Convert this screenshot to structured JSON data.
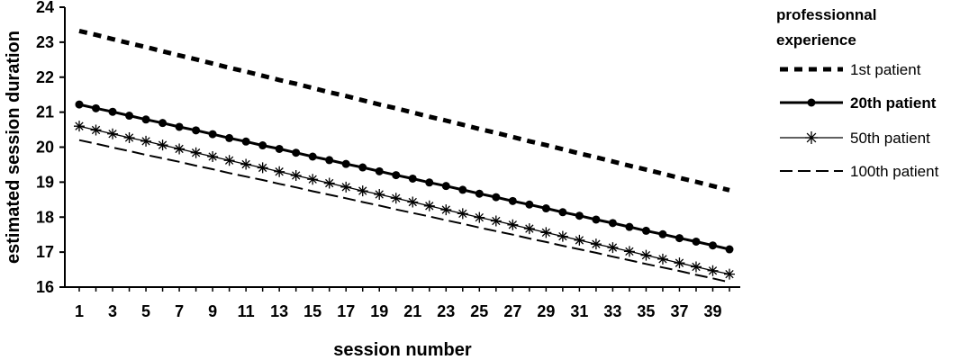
{
  "chart_data": {
    "type": "line",
    "xlabel": "session number",
    "ylabel": "estimated session duration",
    "ylim": [
      16,
      24
    ],
    "xlim": [
      1,
      40
    ],
    "y_ticks": [
      16,
      17,
      18,
      19,
      20,
      21,
      22,
      23,
      24
    ],
    "x_ticks": [
      1,
      3,
      5,
      7,
      9,
      11,
      13,
      15,
      17,
      19,
      21,
      23,
      25,
      27,
      29,
      31,
      33,
      35,
      37,
      39
    ],
    "grid": false,
    "legend": {
      "title_line1": "professionnal",
      "title_line2": "experience",
      "placement": "right"
    },
    "series": [
      {
        "name": "1st patient",
        "style": "dotted-thick",
        "color": "#000000",
        "x": [
          1,
          2,
          3,
          4,
          5,
          6,
          7,
          8,
          9,
          10,
          11,
          12,
          13,
          14,
          15,
          16,
          17,
          18,
          19,
          20,
          21,
          22,
          23,
          24,
          25,
          26,
          27,
          28,
          29,
          30,
          31,
          32,
          33,
          34,
          35,
          36,
          37,
          38,
          39,
          40
        ],
        "values": [
          23.32,
          23.21,
          23.09,
          22.97,
          22.86,
          22.74,
          22.62,
          22.51,
          22.39,
          22.27,
          22.16,
          22.04,
          21.92,
          21.81,
          21.69,
          21.57,
          21.46,
          21.34,
          21.22,
          21.11,
          20.99,
          20.87,
          20.76,
          20.64,
          20.52,
          20.41,
          20.29,
          20.17,
          20.06,
          19.94,
          19.82,
          19.71,
          19.59,
          19.47,
          19.36,
          19.24,
          19.12,
          19.01,
          18.89,
          18.77
        ]
      },
      {
        "name": "20th patient",
        "style": "solid-circle",
        "color": "#000000",
        "x": [
          1,
          2,
          3,
          4,
          5,
          6,
          7,
          8,
          9,
          10,
          11,
          12,
          13,
          14,
          15,
          16,
          17,
          18,
          19,
          20,
          21,
          22,
          23,
          24,
          25,
          26,
          27,
          28,
          29,
          30,
          31,
          32,
          33,
          34,
          35,
          36,
          37,
          38,
          39,
          40
        ],
        "values": [
          21.22,
          21.11,
          21.01,
          20.9,
          20.79,
          20.69,
          20.58,
          20.48,
          20.37,
          20.26,
          20.16,
          20.05,
          19.95,
          19.84,
          19.73,
          19.63,
          19.52,
          19.42,
          19.31,
          19.2,
          19.1,
          18.99,
          18.89,
          18.78,
          18.67,
          18.57,
          18.46,
          18.36,
          18.25,
          18.14,
          18.04,
          17.93,
          17.83,
          17.72,
          17.61,
          17.51,
          17.4,
          17.3,
          17.19,
          17.08
        ]
      },
      {
        "name": "50th patient",
        "style": "thin-star",
        "color": "#000000",
        "x": [
          1,
          2,
          3,
          4,
          5,
          6,
          7,
          8,
          9,
          10,
          11,
          12,
          13,
          14,
          15,
          16,
          17,
          18,
          19,
          20,
          21,
          22,
          23,
          24,
          25,
          26,
          27,
          28,
          29,
          30,
          31,
          32,
          33,
          34,
          35,
          36,
          37,
          38,
          39,
          40
        ],
        "values": [
          20.6,
          20.49,
          20.38,
          20.27,
          20.17,
          20.06,
          19.95,
          19.84,
          19.73,
          19.62,
          19.51,
          19.41,
          19.3,
          19.19,
          19.08,
          18.97,
          18.86,
          18.75,
          18.65,
          18.54,
          18.43,
          18.32,
          18.21,
          18.1,
          17.99,
          17.89,
          17.78,
          17.67,
          17.56,
          17.45,
          17.34,
          17.23,
          17.13,
          17.02,
          16.91,
          16.8,
          16.69,
          16.58,
          16.47,
          16.37
        ]
      },
      {
        "name": "100th patient",
        "style": "dashed",
        "color": "#000000",
        "x": [
          1,
          2,
          3,
          4,
          5,
          6,
          7,
          8,
          9,
          10,
          11,
          12,
          13,
          14,
          15,
          16,
          17,
          18,
          19,
          20,
          21,
          22,
          23,
          24,
          25,
          26,
          27,
          28,
          29,
          30,
          31,
          32,
          33,
          34,
          35,
          36,
          37,
          38,
          39,
          40
        ],
        "values": [
          20.2,
          20.1,
          19.99,
          19.89,
          19.78,
          19.68,
          19.58,
          19.47,
          19.37,
          19.26,
          19.16,
          19.06,
          18.95,
          18.85,
          18.74,
          18.64,
          18.54,
          18.43,
          18.33,
          18.22,
          18.12,
          18.02,
          17.91,
          17.81,
          17.7,
          17.6,
          17.5,
          17.39,
          17.29,
          17.18,
          17.08,
          16.98,
          16.87,
          16.77,
          16.66,
          16.56,
          16.46,
          16.35,
          16.25,
          16.14
        ]
      }
    ]
  }
}
